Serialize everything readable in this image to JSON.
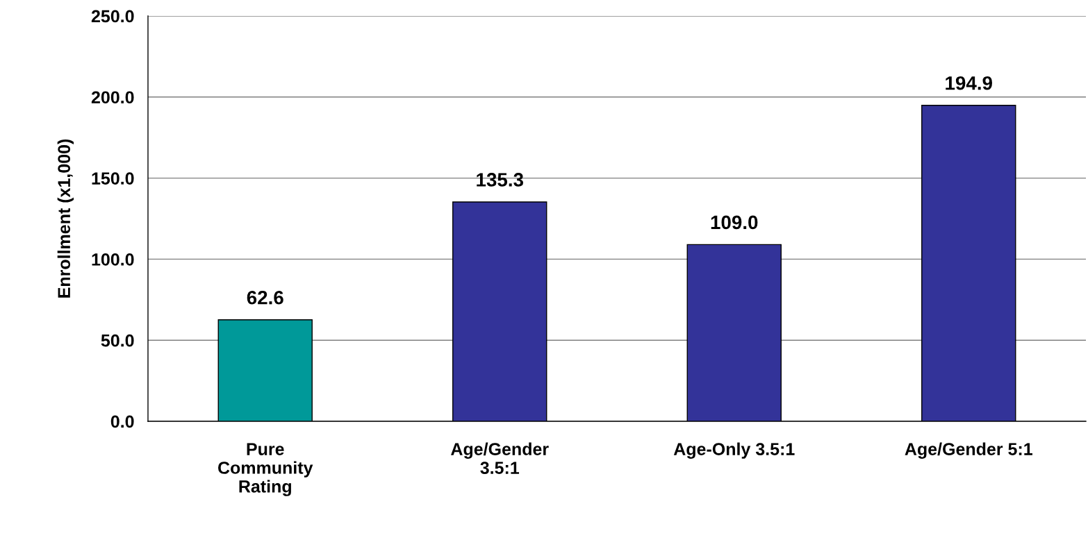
{
  "chart_data": {
    "type": "bar",
    "ylabel": "Enrollment (x1,000)",
    "categories": [
      "Pure\nCommunity\nRating",
      "Age/Gender\n3.5:1",
      "Age-Only 3.5:1",
      "Age/Gender 5:1"
    ],
    "values": [
      62.6,
      135.3,
      109.0,
      194.9
    ],
    "colors": [
      "#009999",
      "#333399",
      "#333399",
      "#333399"
    ],
    "ylim": [
      0,
      250
    ],
    "yticks": [
      {
        "value": 0,
        "label": "0.0"
      },
      {
        "value": 50,
        "label": "50.0"
      },
      {
        "value": 100,
        "label": "100.0"
      },
      {
        "value": 150,
        "label": "150.0"
      },
      {
        "value": 200,
        "label": "200.0"
      },
      {
        "value": 250,
        "label": "250.0"
      }
    ],
    "grid": "y",
    "value_labels": [
      "62.6",
      "135.3",
      "109.0",
      "194.9"
    ]
  }
}
